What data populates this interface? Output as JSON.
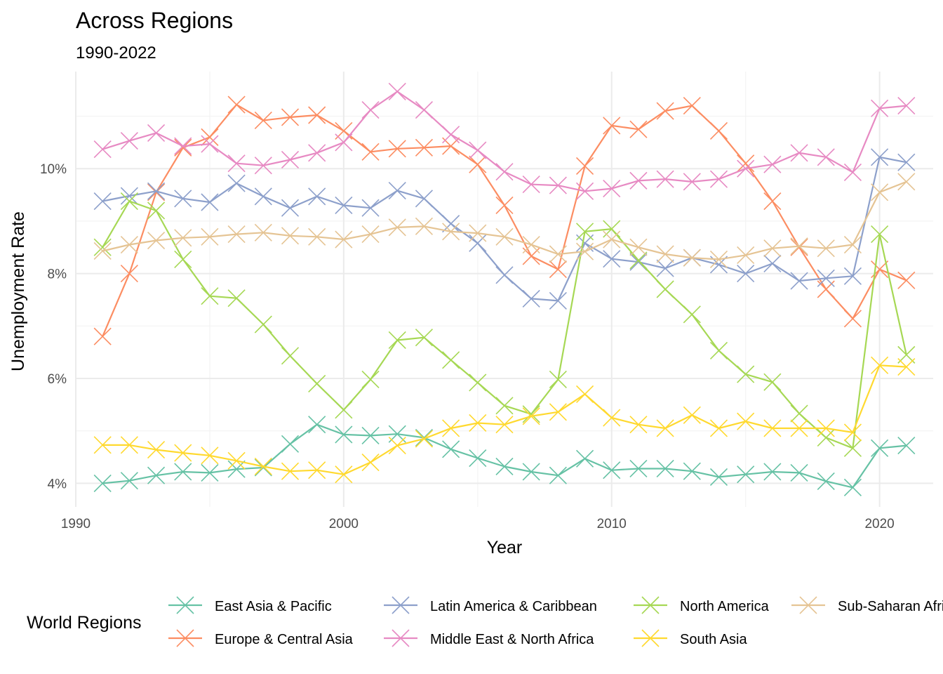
{
  "chart_data": {
    "type": "line",
    "title": "Across Regions",
    "subtitle": "1990-2022",
    "xlabel": "Year",
    "ylabel": "Unemployment Rate",
    "xlim": [
      1990,
      2022
    ],
    "ylim": [
      3.55,
      11.85
    ],
    "x_ticks": [
      1990,
      2000,
      2010,
      2020
    ],
    "y_ticks": [
      4,
      6,
      8,
      10
    ],
    "y_tick_labels": [
      "4%",
      "6%",
      "8%",
      "10%"
    ],
    "grid": true,
    "legend": {
      "title": "World Regions",
      "position": "bottom"
    },
    "x": [
      1991,
      1992,
      1993,
      1994,
      1995,
      1996,
      1997,
      1998,
      1999,
      2000,
      2001,
      2002,
      2003,
      2004,
      2005,
      2006,
      2007,
      2008,
      2009,
      2010,
      2011,
      2012,
      2013,
      2014,
      2015,
      2016,
      2017,
      2018,
      2019,
      2020,
      2021
    ],
    "series": [
      {
        "name": "East Asia & Pacific",
        "color": "#66c2a5",
        "values": [
          4.0,
          4.05,
          4.15,
          4.22,
          4.2,
          4.27,
          4.3,
          4.75,
          5.12,
          4.93,
          4.91,
          4.94,
          4.87,
          4.65,
          4.48,
          4.32,
          4.22,
          4.15,
          4.47,
          4.25,
          4.28,
          4.28,
          4.23,
          4.12,
          4.17,
          4.22,
          4.2,
          4.04,
          3.92,
          4.67,
          4.72
        ]
      },
      {
        "name": "Europe & Central Asia",
        "color": "#fc8d62",
        "values": [
          6.8,
          8.0,
          9.55,
          10.4,
          10.6,
          11.22,
          10.92,
          10.98,
          11.02,
          10.72,
          10.32,
          10.38,
          10.4,
          10.43,
          10.08,
          9.3,
          8.33,
          8.08,
          10.05,
          10.82,
          10.75,
          11.1,
          11.2,
          10.72,
          10.1,
          9.38,
          8.5,
          7.7,
          7.14,
          8.08,
          7.87
        ]
      },
      {
        "name": "Latin America & Caribbean",
        "color": "#8da0cb",
        "values": [
          9.38,
          9.48,
          9.57,
          9.43,
          9.36,
          9.72,
          9.47,
          9.25,
          9.47,
          9.3,
          9.25,
          9.58,
          9.43,
          8.95,
          8.58,
          7.97,
          7.52,
          7.48,
          8.58,
          8.28,
          8.22,
          8.1,
          8.3,
          8.17,
          8.0,
          8.19,
          7.86,
          7.91,
          7.95,
          10.22,
          10.12
        ]
      },
      {
        "name": "Middle East & North Africa",
        "color": "#e78ac3",
        "values": [
          10.37,
          10.53,
          10.68,
          10.43,
          10.47,
          10.1,
          10.06,
          10.17,
          10.3,
          10.5,
          11.12,
          11.47,
          11.12,
          10.65,
          10.35,
          9.94,
          9.7,
          9.68,
          9.57,
          9.62,
          9.77,
          9.8,
          9.75,
          9.8,
          10.0,
          10.08,
          10.3,
          10.22,
          9.93,
          11.15,
          11.2
        ]
      },
      {
        "name": "North America",
        "color": "#a6d854",
        "values": [
          8.5,
          9.38,
          9.2,
          8.27,
          7.57,
          7.53,
          7.03,
          6.43,
          5.9,
          5.4,
          5.98,
          6.73,
          6.78,
          6.35,
          5.92,
          5.48,
          5.32,
          5.98,
          8.8,
          8.85,
          8.25,
          7.7,
          7.22,
          6.53,
          6.08,
          5.93,
          5.33,
          4.87,
          4.67,
          8.75,
          6.45
        ]
      },
      {
        "name": "South Asia",
        "color": "#ffd92f",
        "values": [
          4.73,
          4.73,
          4.64,
          4.58,
          4.53,
          4.43,
          4.32,
          4.23,
          4.25,
          4.17,
          4.4,
          4.72,
          4.85,
          5.05,
          5.15,
          5.12,
          5.28,
          5.36,
          5.7,
          5.25,
          5.12,
          5.05,
          5.3,
          5.05,
          5.18,
          5.05,
          5.05,
          5.05,
          4.97,
          6.25,
          6.22
        ]
      },
      {
        "name": "Sub-Saharan Africa",
        "color": "#e5c494",
        "values": [
          8.43,
          8.55,
          8.63,
          8.68,
          8.7,
          8.75,
          8.78,
          8.72,
          8.7,
          8.65,
          8.75,
          8.88,
          8.9,
          8.8,
          8.77,
          8.7,
          8.55,
          8.37,
          8.42,
          8.65,
          8.5,
          8.37,
          8.3,
          8.27,
          8.35,
          8.48,
          8.52,
          8.48,
          8.55,
          9.55,
          9.75
        ]
      }
    ]
  }
}
